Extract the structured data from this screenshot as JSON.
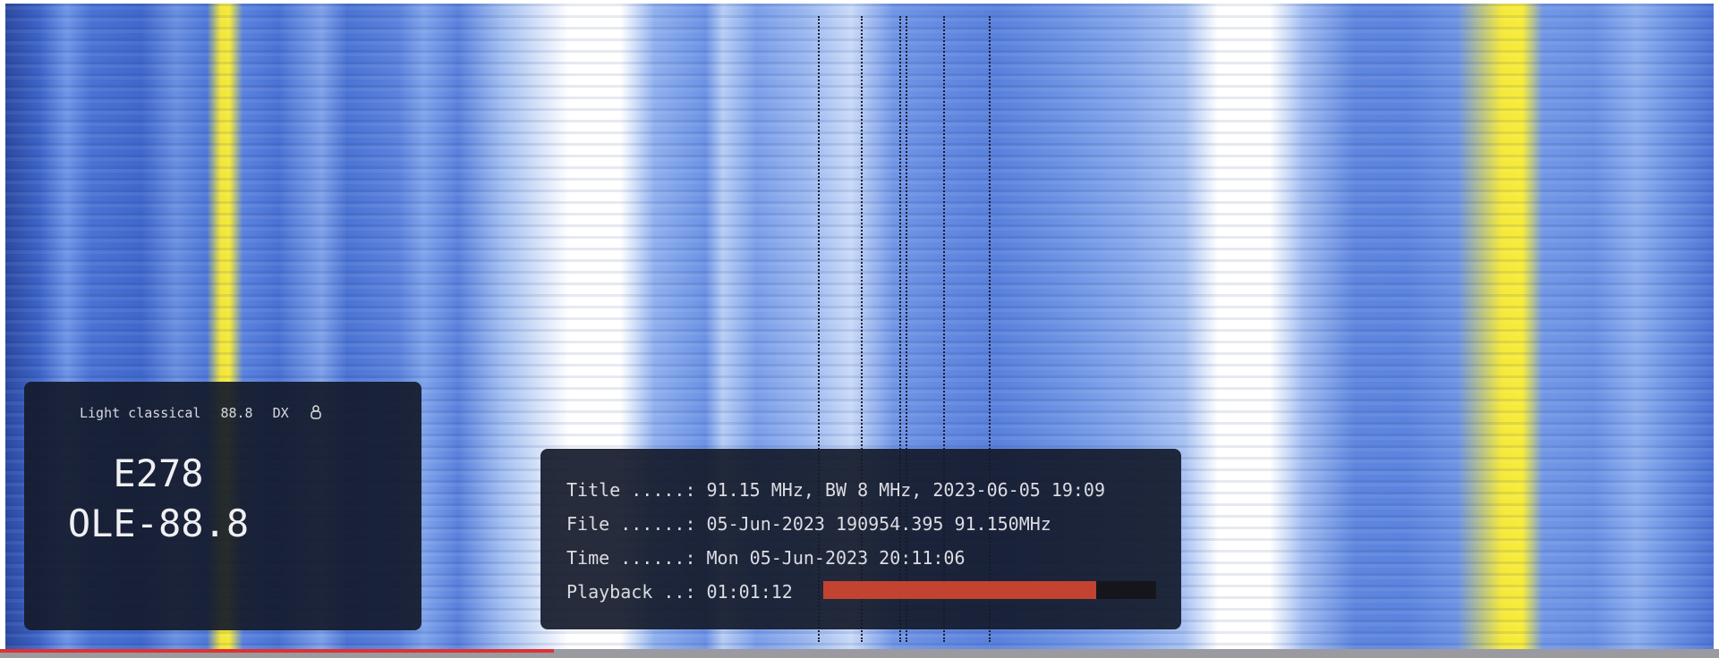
{
  "station_panel": {
    "tags": [
      "Light classical",
      "88.8",
      "DX"
    ],
    "lines": [
      "E278",
      "OLE-88.8"
    ]
  },
  "info_panel": {
    "rows": [
      {
        "label": "Title .....:",
        "value": "91.15 MHz, BW 8 MHz, 2023-06-05 19:09"
      },
      {
        "label": "File ......:",
        "value": "05-Jun-2023 190954.395 91.150MHz"
      },
      {
        "label": "Time ......:",
        "value": "Mon 05-Jun-2023 20:11:06"
      },
      {
        "label": "Playback ..:",
        "value": "01:01:12"
      }
    ],
    "playback_progress": 82
  }
}
